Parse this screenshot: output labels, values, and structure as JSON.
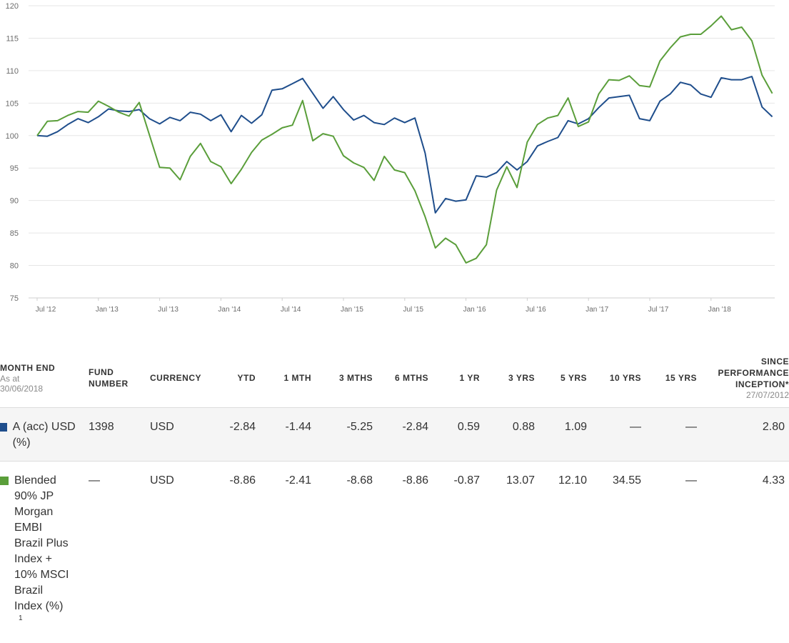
{
  "chart_data": {
    "type": "line",
    "title": "",
    "xlabel": "",
    "ylabel": "",
    "ylim": [
      75,
      120
    ],
    "yticks": [
      75,
      80,
      85,
      90,
      95,
      100,
      105,
      110,
      115,
      120
    ],
    "xticks": [
      "Jul '12",
      "Jan '13",
      "Jul '13",
      "Jan '14",
      "Jul '14",
      "Jan '15",
      "Jul '15",
      "Jan '16",
      "Jul '16",
      "Jan '17",
      "Jul '17",
      "Jan '18"
    ],
    "grid": true,
    "x_start": "2012-07",
    "x_end": "2018-06",
    "series": [
      {
        "name": "A (acc) USD (%)",
        "color": "#1f4e8c",
        "values": [
          100,
          99.9,
          100.6,
          101.7,
          102.6,
          102.0,
          102.9,
          104.1,
          103.8,
          103.7,
          104.0,
          102.6,
          101.8,
          102.8,
          102.3,
          103.6,
          103.3,
          102.3,
          103.2,
          100.6,
          103.1,
          101.9,
          103.2,
          107.0,
          107.2,
          108.0,
          108.8,
          106.5,
          104.2,
          106.0,
          104.0,
          102.4,
          103.1,
          102.0,
          101.7,
          102.7,
          102.0,
          102.7,
          97.3,
          88.1,
          90.3,
          89.9,
          90.1,
          93.8,
          93.6,
          94.3,
          96.0,
          94.7,
          96.0,
          98.4,
          99.1,
          99.7,
          102.3,
          101.8,
          102.6,
          104.3,
          105.8,
          106.0,
          106.2,
          102.6,
          102.3,
          105.3,
          106.4,
          108.2,
          107.8,
          106.4,
          105.9,
          108.9,
          108.6,
          108.6,
          109.1,
          104.4,
          102.9
        ]
      },
      {
        "name": "Blended 90% JP Morgan EMBI Brazil Plus Index + 10% MSCI Brazil Index (%)",
        "color": "#5a9e3a",
        "values": [
          100,
          102.2,
          102.3,
          103.1,
          103.7,
          103.6,
          105.3,
          104.5,
          103.6,
          103.0,
          105.1,
          100.1,
          95.1,
          95.0,
          93.2,
          96.8,
          98.8,
          96.0,
          95.2,
          92.6,
          94.8,
          97.4,
          99.3,
          100.2,
          101.2,
          101.6,
          105.4,
          99.2,
          100.3,
          99.9,
          96.9,
          95.8,
          95.1,
          93.1,
          96.8,
          94.7,
          94.3,
          91.5,
          87.5,
          82.7,
          84.2,
          83.2,
          80.4,
          81.1,
          83.2,
          91.6,
          95.2,
          92.0,
          99.0,
          101.7,
          102.7,
          103.1,
          105.8,
          101.4,
          102.1,
          106.4,
          108.6,
          108.5,
          109.2,
          107.7,
          107.5,
          111.5,
          113.5,
          115.2,
          115.6,
          115.6,
          116.9,
          118.4,
          116.3,
          116.7,
          114.6,
          109.3,
          106.5
        ]
      }
    ]
  },
  "table": {
    "headers": {
      "month_end": "MONTH END",
      "as_at_label": "As at",
      "as_at_date": "30/06/2018",
      "fund_number": "FUND NUMBER",
      "currency": "CURRENCY",
      "ytd": "YTD",
      "m1": "1 MTH",
      "m3": "3 MTHS",
      "m6": "6 MTHS",
      "y1": "1 YR",
      "y3": "3 YRS",
      "y5": "5 YRS",
      "y10": "10 YRS",
      "y15": "15 YRS",
      "since": "SINCE PERFORMANCE INCEPTION*",
      "since_date": "27/07/2012"
    },
    "rows": [
      {
        "name": "A (acc) USD (%)",
        "color": "#1f4e8c",
        "fund_number": "1398",
        "currency": "USD",
        "ytd": "-2.84",
        "m1": "-1.44",
        "m3": "-5.25",
        "m6": "-2.84",
        "y1": "0.59",
        "y3": "0.88",
        "y5": "1.09",
        "y10": "—",
        "y15": "—",
        "since": "2.80"
      },
      {
        "name": "Blended 90% JP Morgan EMBI Brazil Plus Index + 10% MSCI Brazil Index (%)",
        "footnote": "1",
        "color": "#5a9e3a",
        "fund_number": "—",
        "currency": "USD",
        "ytd": "-8.86",
        "m1": "-2.41",
        "m3": "-8.68",
        "m6": "-8.86",
        "y1": "-0.87",
        "y3": "13.07",
        "y5": "12.10",
        "y10": "34.55",
        "y15": "—",
        "since": "4.33"
      }
    ]
  }
}
